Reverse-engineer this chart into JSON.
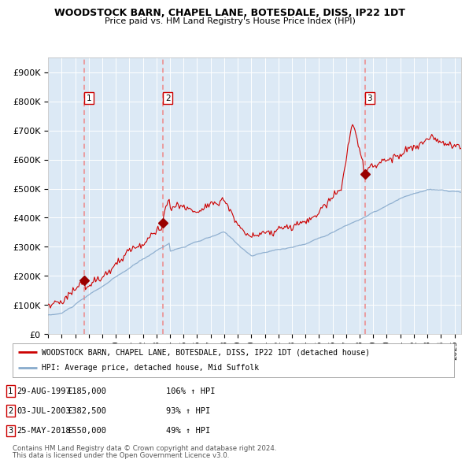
{
  "title": "WOODSTOCK BARN, CHAPEL LANE, BOTESDALE, DISS, IP22 1DT",
  "subtitle": "Price paid vs. HM Land Registry's House Price Index (HPI)",
  "ylim": [
    0,
    950000
  ],
  "yticks": [
    0,
    100000,
    200000,
    300000,
    400000,
    500000,
    600000,
    700000,
    800000,
    900000
  ],
  "ytick_labels": [
    "£0",
    "£100K",
    "£200K",
    "£300K",
    "£400K",
    "£500K",
    "£600K",
    "£700K",
    "£800K",
    "£900K"
  ],
  "xlim_start": 1995.0,
  "xlim_end": 2025.5,
  "xticks": [
    1995,
    1996,
    1997,
    1998,
    1999,
    2000,
    2001,
    2002,
    2003,
    2004,
    2005,
    2006,
    2007,
    2008,
    2009,
    2010,
    2011,
    2012,
    2013,
    2014,
    2015,
    2016,
    2017,
    2018,
    2019,
    2020,
    2021,
    2022,
    2023,
    2024,
    2025
  ],
  "price_paid_color": "#cc0000",
  "hpi_color": "#88aacc",
  "dashed_line_color": "#ee8888",
  "marker_color": "#990000",
  "sale_dates": [
    1997.66,
    2003.5,
    2018.39
  ],
  "sale_prices": [
    185000,
    382500,
    550000
  ],
  "sale_labels": [
    "1",
    "2",
    "3"
  ],
  "legend_property": "WOODSTOCK BARN, CHAPEL LANE, BOTESDALE, DISS, IP22 1DT (detached house)",
  "legend_hpi": "HPI: Average price, detached house, Mid Suffolk",
  "table_rows": [
    [
      "1",
      "29-AUG-1997",
      "£185,000",
      "106% ↑ HPI"
    ],
    [
      "2",
      "03-JUL-2003",
      "£382,500",
      "93% ↑ HPI"
    ],
    [
      "3",
      "25-MAY-2018",
      "£550,000",
      "49% ↑ HPI"
    ]
  ],
  "footer_line1": "Contains HM Land Registry data © Crown copyright and database right 2024.",
  "footer_line2": "This data is licensed under the Open Government Licence v3.0.",
  "background_color": "#ffffff",
  "plot_bg_color": "#dce9f5"
}
